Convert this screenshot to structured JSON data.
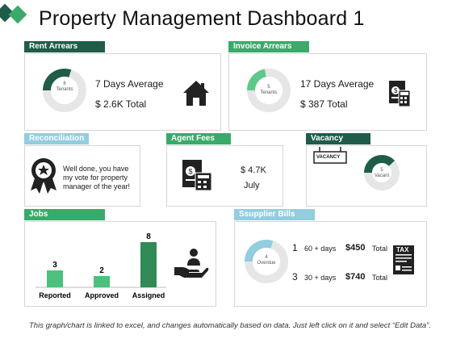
{
  "title": "Property Management Dashboard 1",
  "colors": {
    "dark_green": "#1f5c4a",
    "green": "#3aaa6a",
    "light_blue": "#92cde0",
    "light_green": "#5cc98a"
  },
  "rent_arrears": {
    "header": "Rent Arrears",
    "donut_number": "8",
    "donut_unit": "Tenants",
    "average": "7 Days Average",
    "total": "$ 2.6K Total",
    "icon": "house-icon",
    "fill_fraction": 0.3
  },
  "invoice_arrears": {
    "header": "Invoice Arrears",
    "donut_number": "5",
    "donut_unit": "Tenants",
    "average": "17 Days Average",
    "total": "$ 387 Total",
    "icon": "invoice-calculator-icon",
    "fill_fraction": 0.22
  },
  "reconciliation": {
    "header": "Reconciliation",
    "message_line1": "Well done, you have",
    "message_line2": "my vote for property",
    "message_line3": "manager of the year!",
    "icon": "award-ribbon-icon"
  },
  "agent_fees": {
    "header": "Agent Fees",
    "amount": "$ 4.7K",
    "month": "July",
    "icon": "invoice-calculator-icon"
  },
  "vacancy": {
    "header": "Vacancy",
    "sign_text": "VACANCY",
    "donut_number": "5",
    "donut_unit": "Vacant",
    "icon": "vacancy-sign-icon",
    "fill_fraction": 0.38
  },
  "jobs": {
    "header": "Jobs",
    "icon": "hand-person-icon",
    "chart_data": {
      "type": "bar",
      "categories": [
        "Reported",
        "Approved",
        "Assigned"
      ],
      "values": [
        3,
        2,
        8
      ],
      "ylim": [
        0,
        8
      ]
    }
  },
  "supplier_bills": {
    "header": "Ssupplier Bills",
    "donut_number": "4",
    "donut_unit": "Overdue",
    "fill_fraction": 0.3,
    "rows": [
      {
        "count": "1",
        "days": "60 + days",
        "amount": "$450",
        "suffix": "Total"
      },
      {
        "count": "3",
        "days": "30 + days",
        "amount": "$740",
        "suffix": "Total"
      }
    ],
    "tax_label": "TAX",
    "icon": "tax-document-icon"
  },
  "footer": "This graph/chart is linked to excel, and changes automatically based on data. Just left click on it and select “Edit Data”."
}
